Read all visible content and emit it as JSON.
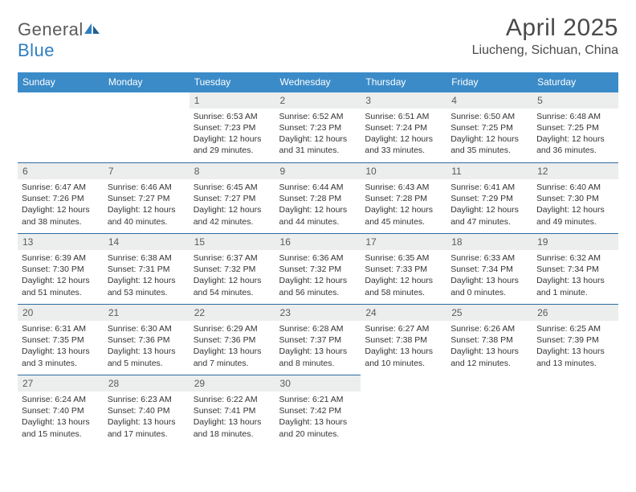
{
  "logo": {
    "text1": "General",
    "text2": "Blue"
  },
  "title": "April 2025",
  "subtitle": "Liucheng, Sichuan, China",
  "colors": {
    "header_bg": "#3b8bc8",
    "header_fg": "#ffffff",
    "row_border": "#2d6da3",
    "daynum_bg": "#eceded",
    "logo_gray": "#5a5a5a",
    "logo_blue": "#2d7fc1"
  },
  "weekdays": [
    "Sunday",
    "Monday",
    "Tuesday",
    "Wednesday",
    "Thursday",
    "Friday",
    "Saturday"
  ],
  "weeks": [
    [
      null,
      null,
      {
        "d": "1",
        "sr": "6:53 AM",
        "ss": "7:23 PM",
        "dl": "12 hours and 29 minutes."
      },
      {
        "d": "2",
        "sr": "6:52 AM",
        "ss": "7:23 PM",
        "dl": "12 hours and 31 minutes."
      },
      {
        "d": "3",
        "sr": "6:51 AM",
        "ss": "7:24 PM",
        "dl": "12 hours and 33 minutes."
      },
      {
        "d": "4",
        "sr": "6:50 AM",
        "ss": "7:25 PM",
        "dl": "12 hours and 35 minutes."
      },
      {
        "d": "5",
        "sr": "6:48 AM",
        "ss": "7:25 PM",
        "dl": "12 hours and 36 minutes."
      }
    ],
    [
      {
        "d": "6",
        "sr": "6:47 AM",
        "ss": "7:26 PM",
        "dl": "12 hours and 38 minutes."
      },
      {
        "d": "7",
        "sr": "6:46 AM",
        "ss": "7:27 PM",
        "dl": "12 hours and 40 minutes."
      },
      {
        "d": "8",
        "sr": "6:45 AM",
        "ss": "7:27 PM",
        "dl": "12 hours and 42 minutes."
      },
      {
        "d": "9",
        "sr": "6:44 AM",
        "ss": "7:28 PM",
        "dl": "12 hours and 44 minutes."
      },
      {
        "d": "10",
        "sr": "6:43 AM",
        "ss": "7:28 PM",
        "dl": "12 hours and 45 minutes."
      },
      {
        "d": "11",
        "sr": "6:41 AM",
        "ss": "7:29 PM",
        "dl": "12 hours and 47 minutes."
      },
      {
        "d": "12",
        "sr": "6:40 AM",
        "ss": "7:30 PM",
        "dl": "12 hours and 49 minutes."
      }
    ],
    [
      {
        "d": "13",
        "sr": "6:39 AM",
        "ss": "7:30 PM",
        "dl": "12 hours and 51 minutes."
      },
      {
        "d": "14",
        "sr": "6:38 AM",
        "ss": "7:31 PM",
        "dl": "12 hours and 53 minutes."
      },
      {
        "d": "15",
        "sr": "6:37 AM",
        "ss": "7:32 PM",
        "dl": "12 hours and 54 minutes."
      },
      {
        "d": "16",
        "sr": "6:36 AM",
        "ss": "7:32 PM",
        "dl": "12 hours and 56 minutes."
      },
      {
        "d": "17",
        "sr": "6:35 AM",
        "ss": "7:33 PM",
        "dl": "12 hours and 58 minutes."
      },
      {
        "d": "18",
        "sr": "6:33 AM",
        "ss": "7:34 PM",
        "dl": "13 hours and 0 minutes."
      },
      {
        "d": "19",
        "sr": "6:32 AM",
        "ss": "7:34 PM",
        "dl": "13 hours and 1 minute."
      }
    ],
    [
      {
        "d": "20",
        "sr": "6:31 AM",
        "ss": "7:35 PM",
        "dl": "13 hours and 3 minutes."
      },
      {
        "d": "21",
        "sr": "6:30 AM",
        "ss": "7:36 PM",
        "dl": "13 hours and 5 minutes."
      },
      {
        "d": "22",
        "sr": "6:29 AM",
        "ss": "7:36 PM",
        "dl": "13 hours and 7 minutes."
      },
      {
        "d": "23",
        "sr": "6:28 AM",
        "ss": "7:37 PM",
        "dl": "13 hours and 8 minutes."
      },
      {
        "d": "24",
        "sr": "6:27 AM",
        "ss": "7:38 PM",
        "dl": "13 hours and 10 minutes."
      },
      {
        "d": "25",
        "sr": "6:26 AM",
        "ss": "7:38 PM",
        "dl": "13 hours and 12 minutes."
      },
      {
        "d": "26",
        "sr": "6:25 AM",
        "ss": "7:39 PM",
        "dl": "13 hours and 13 minutes."
      }
    ],
    [
      {
        "d": "27",
        "sr": "6:24 AM",
        "ss": "7:40 PM",
        "dl": "13 hours and 15 minutes."
      },
      {
        "d": "28",
        "sr": "6:23 AM",
        "ss": "7:40 PM",
        "dl": "13 hours and 17 minutes."
      },
      {
        "d": "29",
        "sr": "6:22 AM",
        "ss": "7:41 PM",
        "dl": "13 hours and 18 minutes."
      },
      {
        "d": "30",
        "sr": "6:21 AM",
        "ss": "7:42 PM",
        "dl": "13 hours and 20 minutes."
      },
      null,
      null,
      null
    ]
  ],
  "labels": {
    "sunrise": "Sunrise: ",
    "sunset": "Sunset: ",
    "daylight": "Daylight: "
  }
}
